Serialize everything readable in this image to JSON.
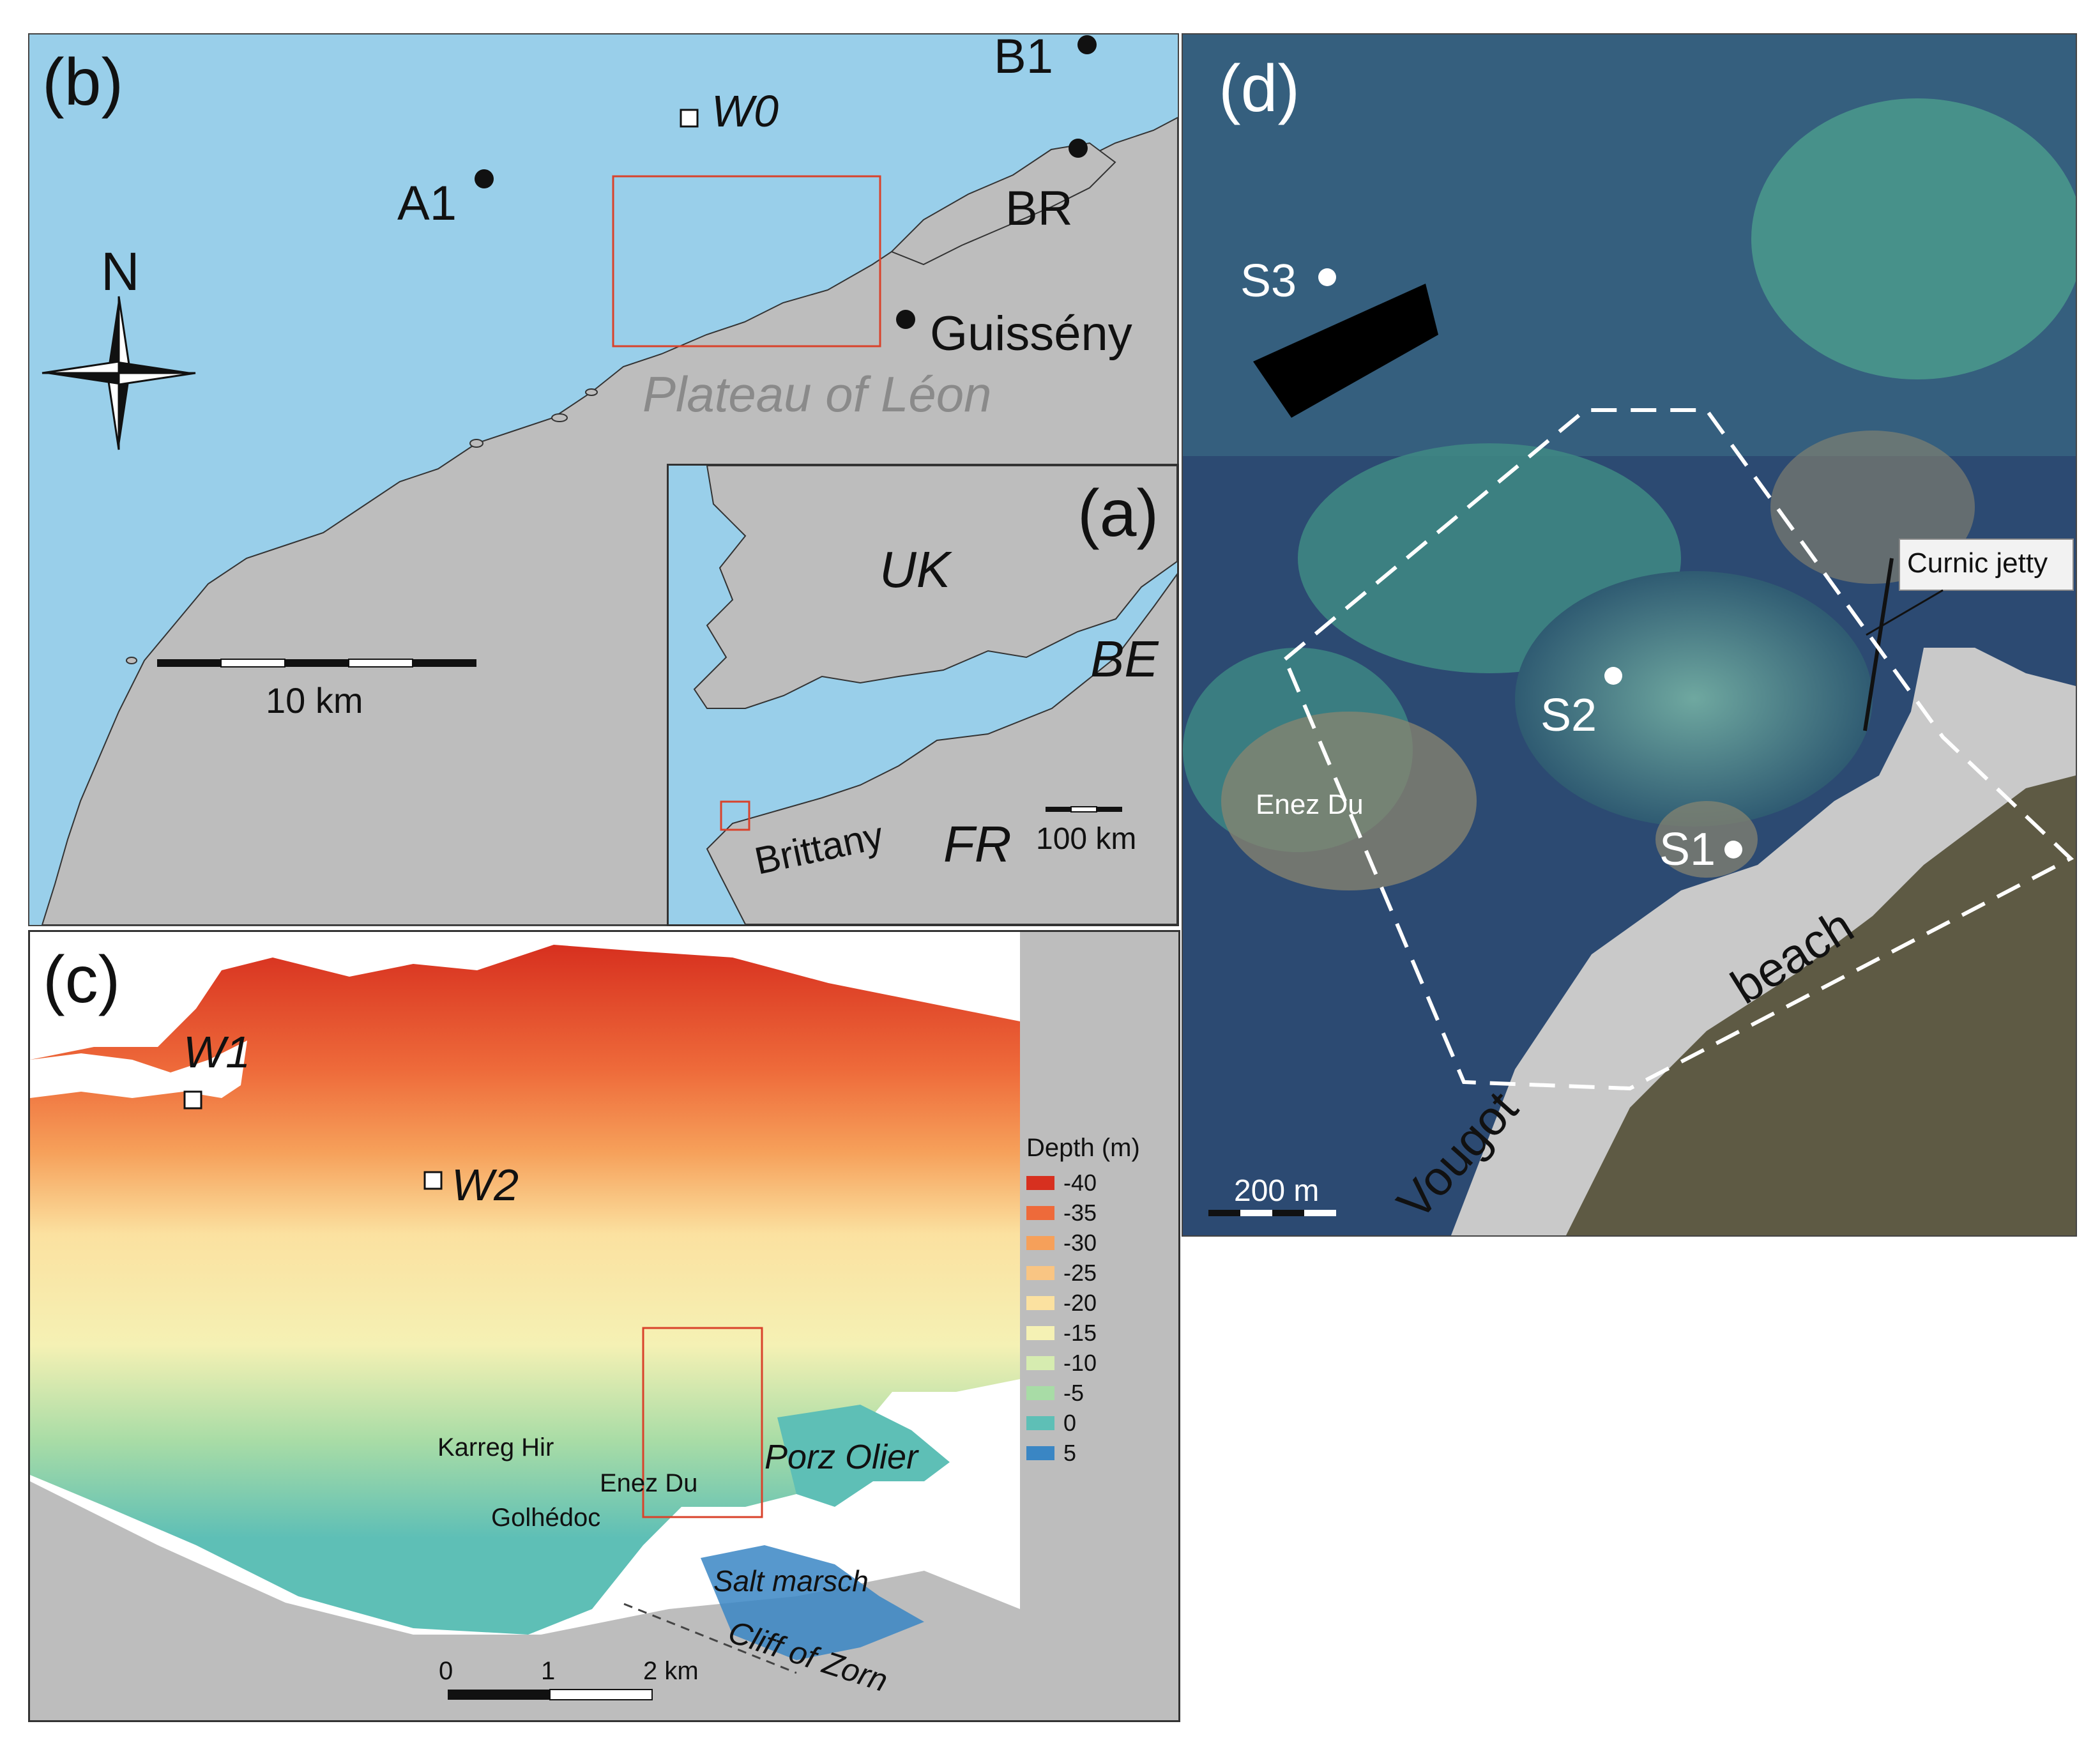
{
  "panel_b": {
    "label": "(b)",
    "north": "N",
    "scale_label": "10 km",
    "stations": {
      "b1": "B1",
      "br": "BR",
      "a1": "A1",
      "guisseny": "Guissény",
      "w0": "W0"
    },
    "region": "Plateau of Léon"
  },
  "panel_a": {
    "label": "(a)",
    "countries": {
      "uk": "UK",
      "be": "BE",
      "fr": "FR"
    },
    "region": "Brittany",
    "scale_label": "100 km"
  },
  "panel_c": {
    "label": "(c)",
    "stations": {
      "w1": "W1",
      "w2": "W2"
    },
    "places": {
      "karreg_hir": "Karreg Hir",
      "golhedoc": "Golhédoc",
      "enez_du": "Enez Du",
      "porz_olier": "Porz Olier",
      "salt_marsh": "Salt marsch",
      "cliff": "Cliff of Zorn"
    },
    "scale": {
      "t0": "0",
      "t1": "1",
      "t2": "2 km"
    },
    "legend": {
      "title": "Depth (m)",
      "items": [
        {
          "label": "-40",
          "color": "#d7301f"
        },
        {
          "label": "-35",
          "color": "#ee6a3a"
        },
        {
          "label": "-30",
          "color": "#f6a05a"
        },
        {
          "label": "-25",
          "color": "#f9c583"
        },
        {
          "label": "-20",
          "color": "#fbe1a0"
        },
        {
          "label": "-15",
          "color": "#f5f1b4"
        },
        {
          "label": "-10",
          "color": "#d6ecb0"
        },
        {
          "label": "-5",
          "color": "#a8dca6"
        },
        {
          "label": "0",
          "color": "#5ebfb6"
        },
        {
          "label": "5",
          "color": "#3a86c4"
        }
      ]
    }
  },
  "panel_d": {
    "label": "(d)",
    "stations": {
      "s1": "S1",
      "s2": "S2",
      "s3": "S3"
    },
    "places": {
      "enez_du": "Enez Du",
      "vougot": "Vougot",
      "beach": "beach"
    },
    "callout": "Curnic jetty",
    "scale_label": "200 m"
  },
  "colors": {
    "sea": "#99cfea",
    "land": "#bdbdbd",
    "frame_red": "#d9422b",
    "station": "#111111"
  }
}
